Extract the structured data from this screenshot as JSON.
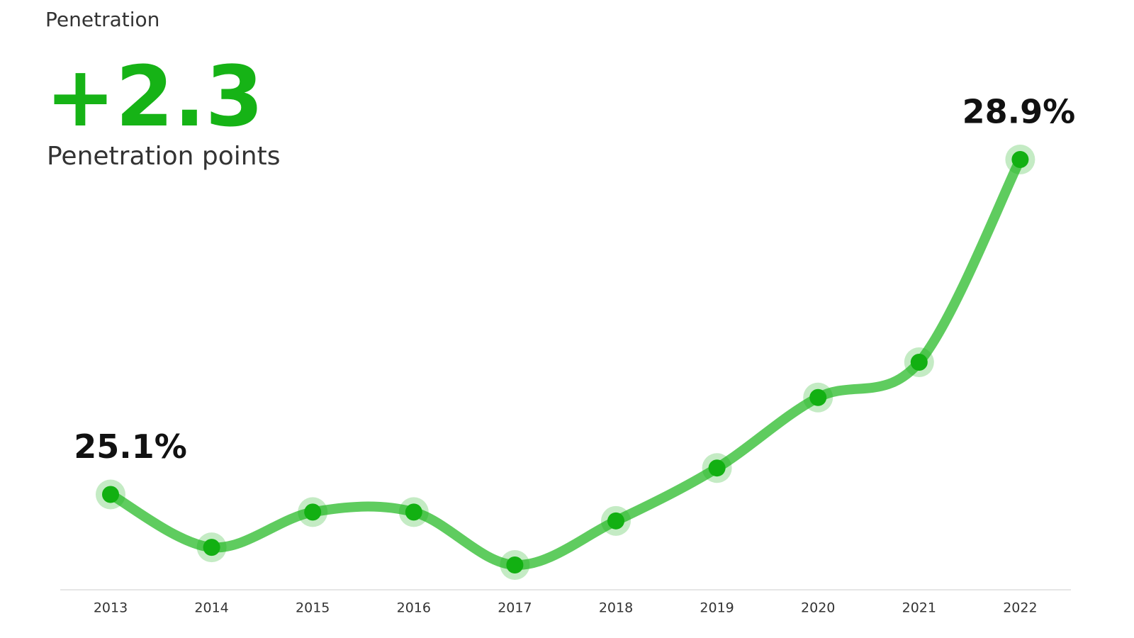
{
  "chart_data": {
    "type": "line",
    "subtitle": "Penetration",
    "headline": "+2.3",
    "headline_caption": "Penetration points",
    "categories": [
      "2013",
      "2014",
      "2015",
      "2016",
      "2017",
      "2018",
      "2019",
      "2020",
      "2021",
      "2022"
    ],
    "series": [
      {
        "name": "Penetration",
        "color": "#5fcc5f",
        "values": [
          25.1,
          24.5,
          24.9,
          24.9,
          24.3,
          24.8,
          25.4,
          26.2,
          26.6,
          28.9
        ],
        "value_labels": [
          "25.1%",
          null,
          null,
          null,
          null,
          null,
          null,
          null,
          null,
          "28.9%"
        ]
      }
    ],
    "marker_color": "#12b012"
  }
}
